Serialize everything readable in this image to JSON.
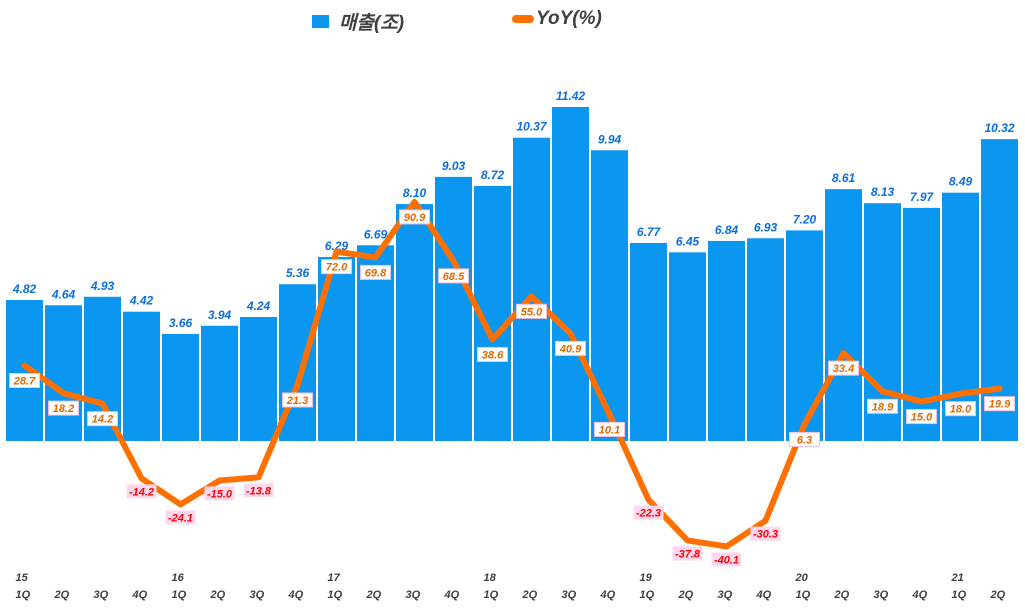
{
  "chart_data": {
    "type": "bar+line",
    "title": "",
    "legend": {
      "placement": "top"
    },
    "categories": [
      "1Q",
      "2Q",
      "3Q",
      "4Q",
      "1Q",
      "2Q",
      "3Q",
      "4Q",
      "1Q",
      "2Q",
      "3Q",
      "4Q",
      "1Q",
      "2Q",
      "3Q",
      "4Q",
      "1Q",
      "2Q",
      "3Q",
      "4Q",
      "1Q",
      "2Q",
      "3Q",
      "4Q",
      "1Q",
      "2Q"
    ],
    "year_labels": [
      {
        "index": 0,
        "label": "15"
      },
      {
        "index": 4,
        "label": "16"
      },
      {
        "index": 8,
        "label": "17"
      },
      {
        "index": 12,
        "label": "18"
      },
      {
        "index": 16,
        "label": "19"
      },
      {
        "index": 20,
        "label": "20"
      },
      {
        "index": 24,
        "label": "21"
      }
    ],
    "series": [
      {
        "name": "매출(조)",
        "type": "bar",
        "color": "#0b96f0",
        "values": [
          4.82,
          4.64,
          4.93,
          4.42,
          3.66,
          3.94,
          4.24,
          5.36,
          6.29,
          6.69,
          8.1,
          9.03,
          8.72,
          10.37,
          11.42,
          9.94,
          6.77,
          6.45,
          6.84,
          6.93,
          7.2,
          8.61,
          8.13,
          7.97,
          8.49,
          10.32
        ],
        "labels": [
          "4.82",
          "4.64",
          "4.93",
          "4.42",
          "3.66",
          "3.94",
          "4.24",
          "5.36",
          "6.29",
          "6.69",
          "8.10",
          "9.03",
          "8.72",
          "10.37",
          "11.42",
          "9.94",
          "6.77",
          "6.45",
          "6.84",
          "6.93",
          "7.20",
          "8.61",
          "8.13",
          "7.97",
          "8.49",
          "10.32"
        ]
      },
      {
        "name": "YoY(%)",
        "type": "line",
        "color": "#ff7000",
        "values": [
          28.7,
          18.2,
          14.2,
          -14.2,
          -24.1,
          -15.0,
          -13.8,
          21.3,
          72.0,
          69.8,
          90.9,
          68.5,
          38.6,
          55.0,
          40.9,
          10.1,
          -22.3,
          -37.8,
          -40.1,
          -30.3,
          6.3,
          33.4,
          18.9,
          15.0,
          18.0,
          19.9
        ],
        "labels": [
          "28.7",
          "18.2",
          "14.2",
          "-14.2",
          "-24.1",
          "-15.0",
          "-13.8",
          "21.3",
          "72.0",
          "69.8",
          "90.9",
          "68.5",
          "38.6",
          "55.0",
          "40.9",
          "10.1",
          "-22.3",
          "-37.8",
          "-40.1",
          "-30.3",
          "6.3",
          "33.4",
          "18.9",
          "15.0",
          "18.0",
          "19.9"
        ]
      }
    ],
    "grid": false
  }
}
